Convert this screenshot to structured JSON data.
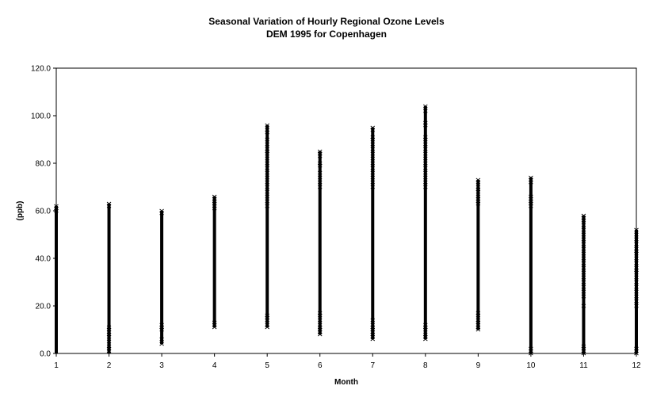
{
  "chart_data": {
    "type": "scatter",
    "title": "Seasonal Variation of Hourly Regional Ozone Levels",
    "subtitle": "DEM 1995 for Copenhagen",
    "xlabel": "Month",
    "ylabel": "(ppb)",
    "xlim": [
      1,
      12
    ],
    "ylim": [
      0,
      120
    ],
    "x_ticks": [
      "1",
      "2",
      "3",
      "4",
      "5",
      "6",
      "7",
      "8",
      "9",
      "10",
      "11",
      "12"
    ],
    "y_ticks": [
      "0.0",
      "20.0",
      "40.0",
      "60.0",
      "80.0",
      "100.0",
      "120.0"
    ],
    "grid": false,
    "legend": "none",
    "marker_color": "#000000",
    "series": [
      {
        "ranges": [
          {
            "x": 1,
            "min": 0,
            "max": 62
          },
          {
            "x": 2,
            "min": 0,
            "max": 63
          },
          {
            "x": 3,
            "min": 4,
            "max": 60
          },
          {
            "x": 4,
            "min": 11,
            "max": 66
          },
          {
            "x": 5,
            "min": 11,
            "max": 96
          },
          {
            "x": 6,
            "min": 8,
            "max": 85
          },
          {
            "x": 7,
            "min": 6,
            "max": 95
          },
          {
            "x": 8,
            "min": 6,
            "max": 104
          },
          {
            "x": 9,
            "min": 10,
            "max": 73
          },
          {
            "x": 10,
            "min": 0,
            "max": 74
          },
          {
            "x": 11,
            "min": 0,
            "max": 58
          },
          {
            "x": 12,
            "min": 0,
            "max": 52
          }
        ],
        "outliers": [
          {
            "x": 1,
            "y": [
              60,
              61,
              62
            ]
          },
          {
            "x": 2,
            "y": [
              1,
              2,
              3,
              5,
              7,
              8,
              9,
              10,
              11,
              62,
              63
            ]
          },
          {
            "x": 3,
            "y": [
              4,
              6,
              10,
              11,
              12,
              59,
              60
            ]
          },
          {
            "x": 4,
            "y": [
              11,
              12,
              13,
              61,
              62,
              63,
              64,
              65,
              66
            ]
          },
          {
            "x": 5,
            "y": [
              11,
              12,
              14,
              15,
              16,
              62,
              64,
              66,
              68,
              70,
              72,
              74,
              76,
              78,
              80,
              82,
              84,
              85,
              86,
              88,
              90,
              93,
              94,
              96
            ]
          },
          {
            "x": 6,
            "y": [
              8,
              9,
              10,
              11,
              12,
              14,
              16,
              17,
              70,
              72,
              74,
              76,
              79,
              80,
              83,
              84,
              85
            ]
          },
          {
            "x": 7,
            "y": [
              6,
              7,
              8,
              9,
              10,
              11,
              12,
              14,
              70,
              72,
              74,
              76,
              78,
              80,
              82,
              84,
              86,
              88,
              90,
              91,
              94,
              95
            ]
          },
          {
            "x": 8,
            "y": [
              6,
              7,
              8,
              10,
              11,
              12,
              70,
              72,
              74,
              76,
              78,
              80,
              82,
              84,
              86,
              88,
              90,
              91,
              96,
              97,
              102,
              104
            ]
          },
          {
            "x": 9,
            "y": [
              10,
              11,
              12,
              13,
              14,
              16,
              17,
              63,
              64,
              65,
              66,
              68,
              69,
              70,
              72,
              73
            ]
          },
          {
            "x": 10,
            "y": [
              0,
              1,
              2,
              62,
              63,
              64,
              65,
              66,
              72,
              73,
              74
            ]
          },
          {
            "x": 11,
            "y": [
              0,
              1,
              2,
              3,
              20,
              24,
              26,
              28,
              30,
              32,
              34,
              36,
              38,
              40,
              42,
              44,
              46,
              48,
              50,
              52,
              54,
              56,
              57,
              58
            ]
          },
          {
            "x": 12,
            "y": [
              0,
              1,
              2,
              20,
              22,
              24,
              26,
              28,
              30,
              32,
              34,
              35,
              36,
              38,
              40,
              42,
              43,
              44,
              46,
              48,
              50,
              52
            ]
          }
        ]
      }
    ]
  }
}
